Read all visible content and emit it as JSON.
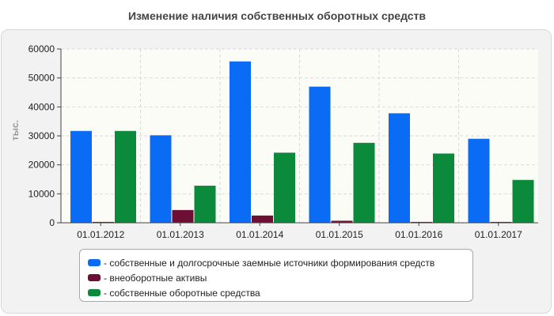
{
  "chart_data": {
    "type": "bar",
    "title": "Изменение наличия собственных оборотных средств",
    "ylabel": "тыс.",
    "xlabel": "",
    "ylim": [
      0,
      60000
    ],
    "yticks": [
      0,
      10000,
      20000,
      30000,
      40000,
      50000,
      60000
    ],
    "grid": true,
    "legend_position": "bottom",
    "categories": [
      "01.01.2012",
      "01.01.2013",
      "01.01.2014",
      "01.01.2015",
      "01.01.2016",
      "01.01.2017"
    ],
    "series": [
      {
        "name": "- собственные и долгосрочные заемные источники формирования средств",
        "color": "#0a6cf5",
        "values": [
          31700,
          30200,
          55700,
          47000,
          37800,
          29000
        ]
      },
      {
        "name": "- внеоборотные активы",
        "color": "#6d0f35",
        "values": [
          300,
          4400,
          2500,
          700,
          300,
          300
        ]
      },
      {
        "name": "- собственные оборотные средства",
        "color": "#0a8a3a",
        "values": [
          31700,
          12800,
          24200,
          27600,
          23900,
          14800
        ]
      }
    ]
  }
}
